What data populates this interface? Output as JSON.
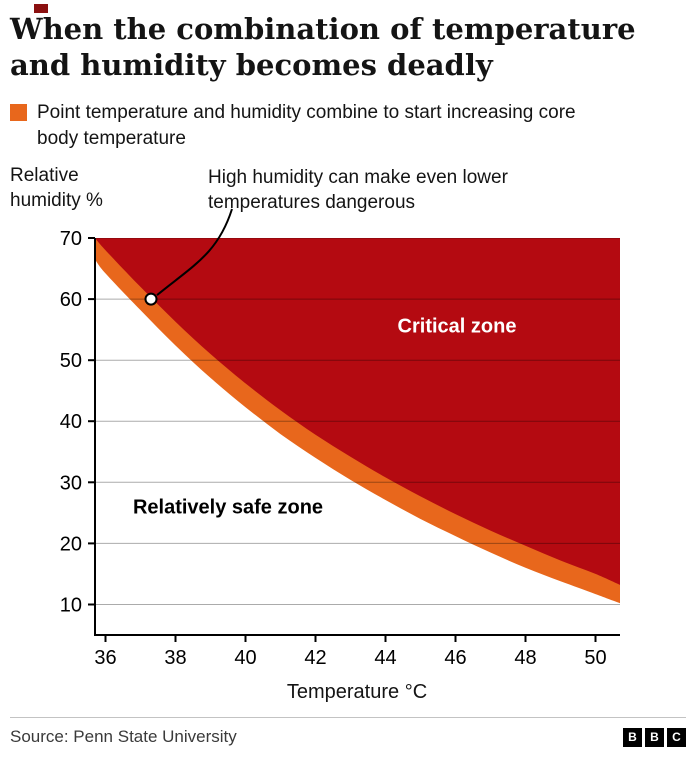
{
  "page": {
    "title": "When the combination of temperature and humidity becomes deadly",
    "legend": {
      "swatch_color": "#e8671c",
      "label": "Point temperature and humidity combine to start increasing core body temperature"
    },
    "source": "Source: Penn State University",
    "logo_letters": [
      "B",
      "B",
      "C"
    ]
  },
  "chart_data": {
    "type": "area",
    "title": "When the combination of temperature and humidity becomes deadly",
    "xlabel": "Temperature °C",
    "ylabel": "Relative humidity %",
    "xlim": [
      35.7,
      50.7
    ],
    "ylim": [
      5,
      70
    ],
    "x_ticks": [
      36,
      38,
      40,
      42,
      44,
      46,
      48,
      50
    ],
    "y_ticks": [
      10,
      20,
      30,
      40,
      50,
      60,
      70
    ],
    "grid": "horizontal",
    "x": [
      35.7,
      36,
      37,
      38,
      39,
      40,
      41,
      42,
      43,
      44,
      45,
      46,
      47,
      48,
      49,
      50,
      50.7
    ],
    "series": [
      {
        "name": "critical-zone-boundary-upper",
        "color": "#b40a11",
        "values": [
          70,
          68,
          62,
          56.3,
          51,
          46.2,
          41.8,
          37.8,
          34.2,
          30.8,
          27.7,
          24.8,
          22.1,
          19.6,
          17.2,
          15,
          13.2
        ]
      },
      {
        "name": "threshold-band-lower",
        "color": "#e8671c",
        "values": [
          66.5,
          64.2,
          58.2,
          52.4,
          47.1,
          42.3,
          37.9,
          34,
          30.4,
          27.1,
          24,
          21.2,
          18.5,
          16,
          13.8,
          11.7,
          10.2
        ]
      }
    ],
    "zones": [
      {
        "label": "Critical zone",
        "fill": "#b40a11",
        "text_color": "#ffffff"
      },
      {
        "label": "Relatively safe zone",
        "fill": "#ffffff",
        "text_color": "#000000"
      }
    ],
    "annotation": {
      "text": "High humidity can make even lower temperatures dangerous",
      "point": {
        "x": 37.3,
        "y": 60
      }
    },
    "colors": {
      "grid": "rgba(0,0,0,0.33)",
      "axis": "#000000"
    },
    "legend_position": "top-left"
  }
}
